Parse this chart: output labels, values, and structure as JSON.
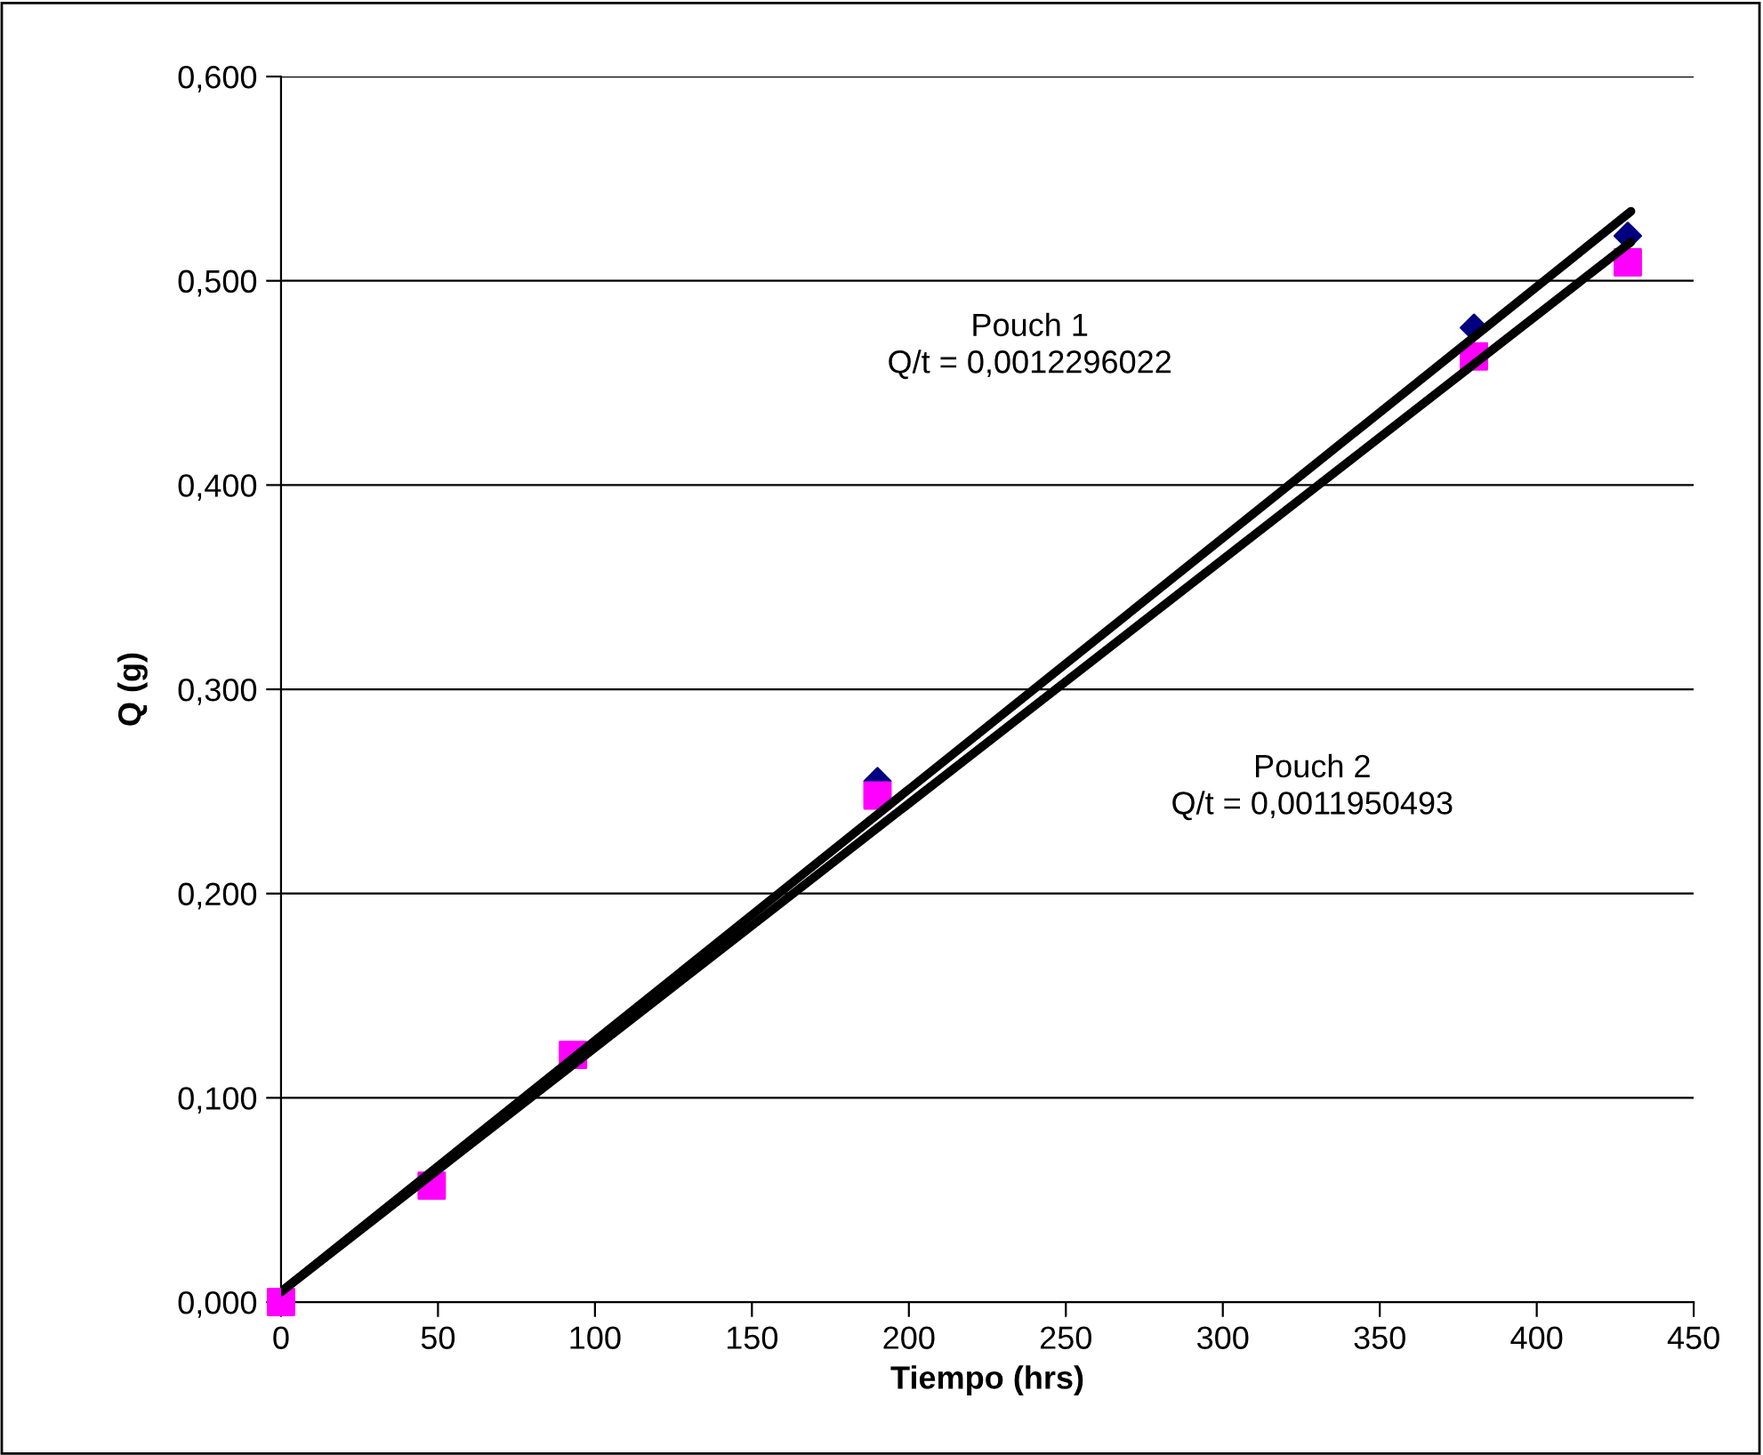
{
  "chart_data": {
    "type": "scatter",
    "xlabel": "Tiempo (hrs)",
    "ylabel": "Q (g)",
    "xlim": [
      0,
      450
    ],
    "xticks": [
      0,
      50,
      100,
      150,
      200,
      250,
      300,
      350,
      400,
      450
    ],
    "ylim": [
      0,
      0.6
    ],
    "yticks": [
      {
        "value": 0,
        "label": "0,000"
      },
      {
        "value": 0.1,
        "label": "0,100"
      },
      {
        "value": 0.2,
        "label": "0,200"
      },
      {
        "value": 0.3,
        "label": "0,300"
      },
      {
        "value": 0.4,
        "label": "0,400"
      },
      {
        "value": 0.5,
        "label": "0,500"
      },
      {
        "value": 0.6,
        "label": "0,600"
      }
    ],
    "grid": "y",
    "legend": false,
    "series": [
      {
        "marker": "diamond",
        "color": "#000080",
        "x": [
          190,
          380,
          429
        ],
        "values": [
          0.255,
          0.477,
          0.522
        ]
      },
      {
        "marker": "square",
        "color": "#ff00ff",
        "x": [
          0,
          48,
          93,
          190,
          380,
          429
        ],
        "values": [
          0,
          0.057,
          0.121,
          0.248,
          0.463,
          0.509
        ]
      },
      {
        "type": "line",
        "marker": "none",
        "line_style": "solid",
        "color": "#000000",
        "x": [
          0,
          430
        ],
        "values": [
          0.005,
          0.534
        ]
      },
      {
        "type": "line",
        "marker": "none",
        "line_style": "solid",
        "color": "#000000",
        "x": [
          0,
          430
        ],
        "values": [
          0.005,
          0.519
        ]
      }
    ],
    "annotations": [
      "Pouch 1\nQ/t = 0,0012296022",
      "Pouch 2\nQ/t = 0,0011950493"
    ]
  }
}
